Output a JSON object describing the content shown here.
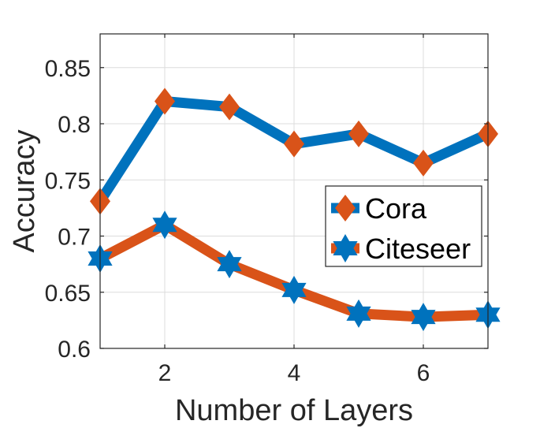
{
  "chart_data": {
    "type": "line",
    "title": "",
    "xlabel": "Number of Layers",
    "ylabel": "Accuracy",
    "x": [
      1,
      2,
      3,
      4,
      5,
      6,
      7
    ],
    "xlim": [
      1,
      7
    ],
    "ylim": [
      0.6,
      0.88
    ],
    "xticks": [
      2,
      4,
      6
    ],
    "xtick_labels": [
      "2",
      "4",
      "6"
    ],
    "yticks": [
      0.6,
      0.65,
      0.7,
      0.75,
      0.8,
      0.85
    ],
    "ytick_labels": [
      "0.6",
      "0.65",
      "0.7",
      "0.75",
      "0.8",
      "0.85"
    ],
    "grid": true,
    "legend_position": "center-right",
    "series": [
      {
        "name": "Cora",
        "values": [
          0.731,
          0.82,
          0.815,
          0.782,
          0.791,
          0.765,
          0.791
        ],
        "line_color": "#0072BD",
        "marker": "diamond",
        "marker_color": "#D95319"
      },
      {
        "name": "Citeseer",
        "values": [
          0.68,
          0.71,
          0.675,
          0.652,
          0.631,
          0.628,
          0.63
        ],
        "line_color": "#D95319",
        "marker": "hexagram",
        "marker_color": "#0072BD"
      }
    ]
  }
}
